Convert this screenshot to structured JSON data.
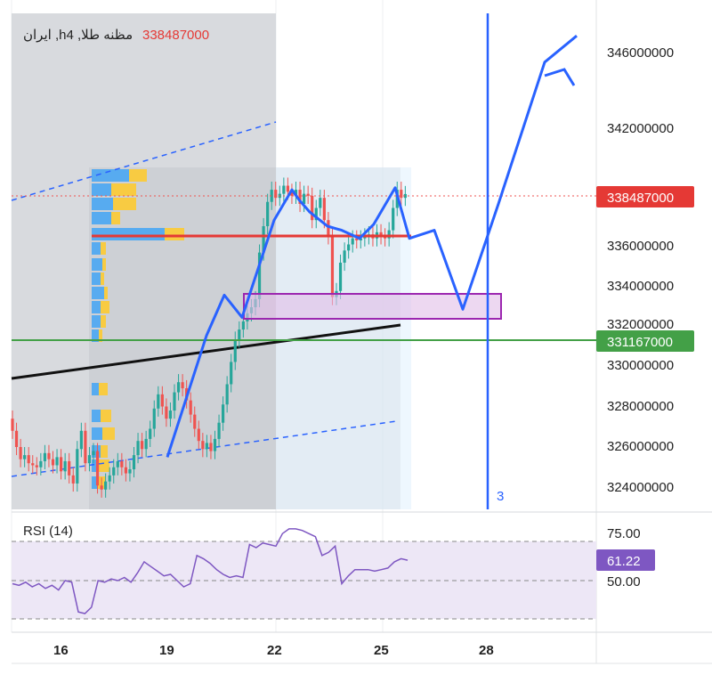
{
  "header": {
    "symbol_label": "ایران ,hمظنه طلا, 4",
    "last_price": "338487000"
  },
  "colors": {
    "up": "#26a69a",
    "down": "#ef5350",
    "drawing_blue": "#2962ff",
    "hline_red": "#e53935",
    "hline_green": "#43a047",
    "box_purple": "#9c27b0",
    "rsi_line": "#7e57c2",
    "rsi_band": "#ede7f6"
  },
  "chart_data": {
    "type": "candlestick",
    "timeframe": "4h",
    "x_ticks": [
      "16",
      "19",
      "22",
      "25",
      "28"
    ],
    "y_ticks": [
      "346000000",
      "342000000",
      "336000000",
      "334000000",
      "332000000",
      "330000000",
      "328000000",
      "326000000",
      "324000000"
    ],
    "price_labels": [
      {
        "text": "338487000",
        "value": 338487000,
        "color": "#e53935"
      },
      {
        "text": "331167000",
        "value": 331167000,
        "color": "#43a047"
      }
    ],
    "horizontal_lines": [
      {
        "value": 336400000,
        "color": "#e53935",
        "x_from": 16.8,
        "x_to": 25.8
      },
      {
        "value": 331167000,
        "color": "#43a047",
        "x_from": 13.2,
        "x_to": 32
      }
    ],
    "vertical_line": {
      "x": 28,
      "label": "3"
    },
    "demand_box": {
      "x_from": 21.8,
      "x_to": 28.3,
      "y_from": 332300000,
      "y_to": 333500000
    },
    "candles_close": [
      326800,
      326000,
      325400,
      325600,
      325200,
      325100,
      325000,
      325300,
      325700,
      325400,
      325100,
      325500,
      324800,
      325300,
      324600,
      324200,
      325900,
      326800,
      325200,
      325600,
      325800,
      324100,
      323900,
      324300,
      324600,
      325000,
      325300,
      325000,
      324700,
      324900,
      325600,
      326300,
      325900,
      326400,
      326900,
      327900,
      328600,
      328000,
      327400,
      327800,
      328700,
      329200,
      328900,
      328300,
      327600,
      326900,
      326300,
      325900,
      326200,
      325800,
      326400,
      327200,
      328100,
      329100,
      330200,
      331300,
      331800,
      332200,
      332600,
      332900,
      333300,
      335600,
      336900,
      338100,
      338700,
      338300,
      338500,
      338900,
      338600,
      338400,
      338700,
      338000,
      338500,
      338400,
      337200,
      337800,
      338300,
      337200,
      336400,
      333400,
      333700,
      335100,
      335700,
      336000,
      336300,
      336200,
      336300,
      336400,
      336500,
      336300,
      336600,
      336400,
      336300,
      336700,
      337800,
      338700,
      338300,
      338487
    ],
    "drawn_path": [
      {
        "x": 19.2,
        "y": 325500
      },
      {
        "x": 20.3,
        "y": 331500
      },
      {
        "x": 20.8,
        "y": 333500
      },
      {
        "x": 21.3,
        "y": 332400
      },
      {
        "x": 22.2,
        "y": 337200
      },
      {
        "x": 22.7,
        "y": 338700
      },
      {
        "x": 22.9,
        "y": 338200
      },
      {
        "x": 23.2,
        "y": 337600
      },
      {
        "x": 23.7,
        "y": 336900
      },
      {
        "x": 24.1,
        "y": 336700
      },
      {
        "x": 24.6,
        "y": 336300
      },
      {
        "x": 25.0,
        "y": 337000
      },
      {
        "x": 25.6,
        "y": 338800
      },
      {
        "x": 26.0,
        "y": 336300
      },
      {
        "x": 26.7,
        "y": 336700
      },
      {
        "x": 27.5,
        "y": 332800
      },
      {
        "x": 28.5,
        "y": 338000
      },
      {
        "x": 29.8,
        "y": 345000
      },
      {
        "x": 30.7,
        "y": 346300
      }
    ],
    "rsi": {
      "label": "RSI (14)",
      "current": "61.22",
      "levels": [
        "75.00",
        "50.00"
      ],
      "upper": 75,
      "lower": 25
    }
  }
}
